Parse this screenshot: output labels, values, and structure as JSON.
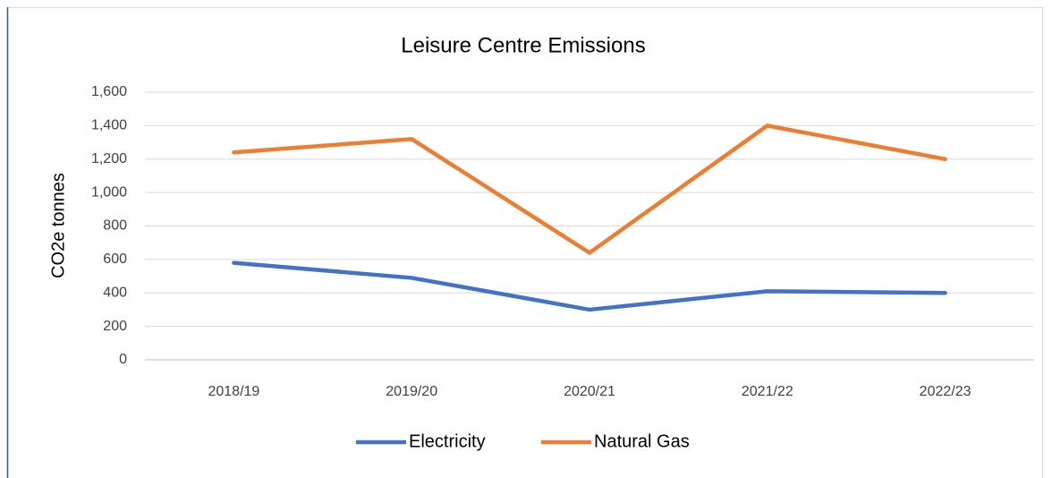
{
  "chart_data": {
    "type": "line",
    "title": "Leisure Centre Emissions",
    "y_label": "CO2e tonnes",
    "categories": [
      "2018/19",
      "2019/20",
      "2020/21",
      "2021/22",
      "2022/23"
    ],
    "series": [
      {
        "name": "Electricity",
        "color": "#4472c4",
        "values": [
          580,
          490,
          300,
          410,
          400
        ]
      },
      {
        "name": "Natural Gas",
        "color": "#ed7d31",
        "values": [
          1240,
          1320,
          640,
          1400,
          1200
        ]
      }
    ],
    "ylim": [
      0,
      1600
    ],
    "yticks": [
      0,
      200,
      400,
      600,
      800,
      {
        "value": 1000,
        "label": "1,000"
      },
      {
        "value": 1200,
        "label": "1,200"
      },
      {
        "value": 1400,
        "label": "1,400"
      },
      {
        "value": 1600,
        "label": "1,600"
      }
    ],
    "grid": true,
    "legend": "bottom"
  }
}
